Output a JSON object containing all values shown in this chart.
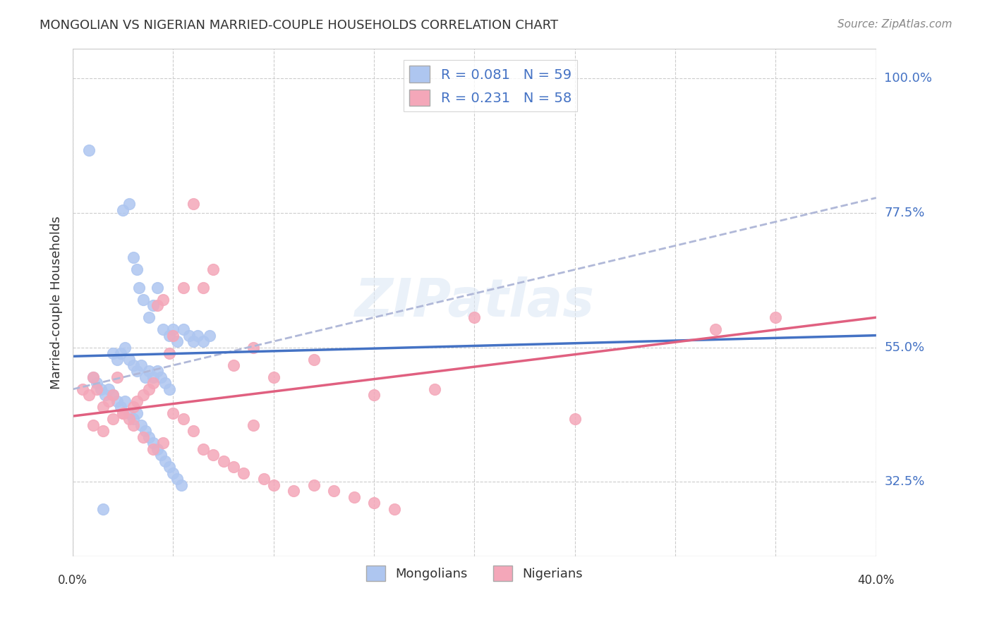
{
  "title": "MONGOLIAN VS NIGERIAN MARRIED-COUPLE HOUSEHOLDS CORRELATION CHART",
  "source": "Source: ZipAtlas.com",
  "ylabel": "Married-couple Households",
  "ytick_labels": [
    "100.0%",
    "77.5%",
    "55.0%",
    "32.5%"
  ],
  "ytick_values": [
    1.0,
    0.775,
    0.55,
    0.325
  ],
  "xlim": [
    0.0,
    0.4
  ],
  "ylim": [
    0.2,
    1.05
  ],
  "mongolian_color": "#aec6f0",
  "nigerian_color": "#f4a7b9",
  "mongolian_line_color": "#4472c4",
  "nigerian_line_color": "#e06080",
  "dash_line_color": "#b0b8d8",
  "watermark": "ZIPatlas",
  "background_color": "#ffffff",
  "mongolian_x": [
    0.008,
    0.025,
    0.028,
    0.03,
    0.032,
    0.033,
    0.035,
    0.038,
    0.04,
    0.042,
    0.045,
    0.048,
    0.05,
    0.052,
    0.055,
    0.058,
    0.06,
    0.062,
    0.065,
    0.068,
    0.02,
    0.022,
    0.024,
    0.026,
    0.028,
    0.03,
    0.032,
    0.034,
    0.036,
    0.038,
    0.04,
    0.042,
    0.044,
    0.046,
    0.048,
    0.01,
    0.012,
    0.014,
    0.016,
    0.018,
    0.02,
    0.022,
    0.024,
    0.026,
    0.028,
    0.03,
    0.032,
    0.034,
    0.036,
    0.038,
    0.04,
    0.042,
    0.044,
    0.046,
    0.048,
    0.05,
    0.052,
    0.054,
    0.015
  ],
  "mongolian_y": [
    0.88,
    0.78,
    0.79,
    0.7,
    0.68,
    0.65,
    0.63,
    0.6,
    0.62,
    0.65,
    0.58,
    0.57,
    0.58,
    0.56,
    0.58,
    0.57,
    0.56,
    0.57,
    0.56,
    0.57,
    0.54,
    0.53,
    0.54,
    0.55,
    0.53,
    0.52,
    0.51,
    0.52,
    0.5,
    0.51,
    0.5,
    0.51,
    0.5,
    0.49,
    0.48,
    0.5,
    0.49,
    0.48,
    0.47,
    0.48,
    0.47,
    0.46,
    0.45,
    0.46,
    0.44,
    0.43,
    0.44,
    0.42,
    0.41,
    0.4,
    0.39,
    0.38,
    0.37,
    0.36,
    0.35,
    0.34,
    0.33,
    0.32,
    0.28
  ],
  "nigerian_x": [
    0.005,
    0.008,
    0.01,
    0.012,
    0.015,
    0.018,
    0.02,
    0.022,
    0.025,
    0.028,
    0.03,
    0.032,
    0.035,
    0.038,
    0.04,
    0.042,
    0.045,
    0.048,
    0.05,
    0.055,
    0.06,
    0.065,
    0.07,
    0.08,
    0.09,
    0.1,
    0.12,
    0.15,
    0.18,
    0.2,
    0.25,
    0.32,
    0.01,
    0.015,
    0.02,
    0.025,
    0.03,
    0.035,
    0.04,
    0.045,
    0.05,
    0.055,
    0.06,
    0.065,
    0.07,
    0.075,
    0.08,
    0.085,
    0.09,
    0.095,
    0.1,
    0.11,
    0.12,
    0.13,
    0.14,
    0.15,
    0.16,
    0.35
  ],
  "nigerian_y": [
    0.48,
    0.47,
    0.5,
    0.48,
    0.45,
    0.46,
    0.47,
    0.5,
    0.44,
    0.43,
    0.45,
    0.46,
    0.47,
    0.48,
    0.49,
    0.62,
    0.63,
    0.54,
    0.57,
    0.65,
    0.79,
    0.65,
    0.68,
    0.52,
    0.55,
    0.5,
    0.53,
    0.47,
    0.48,
    0.6,
    0.43,
    0.58,
    0.42,
    0.41,
    0.43,
    0.44,
    0.42,
    0.4,
    0.38,
    0.39,
    0.44,
    0.43,
    0.41,
    0.38,
    0.37,
    0.36,
    0.35,
    0.34,
    0.42,
    0.33,
    0.32,
    0.31,
    0.32,
    0.31,
    0.3,
    0.29,
    0.28,
    0.6
  ],
  "mong_trend_x": [
    0.0,
    0.4
  ],
  "mong_trend_y": [
    0.535,
    0.57
  ],
  "nig_trend_x": [
    0.0,
    0.4
  ],
  "nig_trend_y": [
    0.435,
    0.6
  ],
  "dash_trend_x": [
    0.0,
    0.4
  ],
  "dash_trend_y": [
    0.48,
    0.8
  ]
}
